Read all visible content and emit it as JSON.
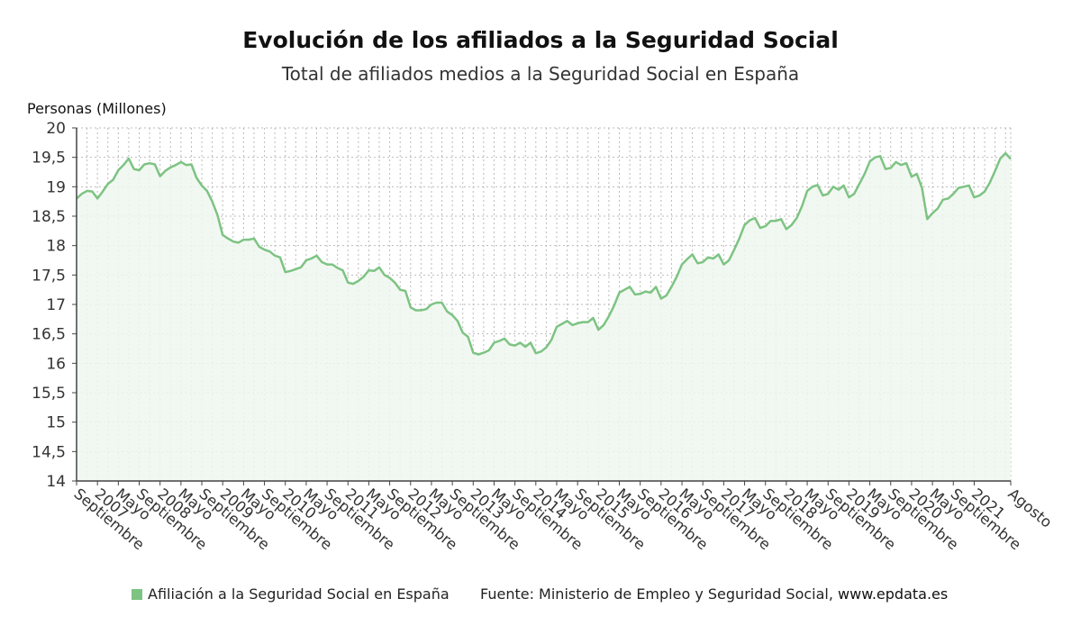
{
  "title": "Evolución de los afiliados a la Seguridad Social",
  "subtitle": "Total de afiliados medios a la Seguridad Social en España",
  "ylabel": "Personas (Millones)",
  "legend": {
    "label": "Afiliación a la Seguridad Social en España"
  },
  "source": {
    "prefix": "Fuente: Ministerio de Empleo y Seguridad Social, ",
    "site": "www.epdata.es"
  },
  "colors": {
    "line": "#7dc383",
    "area": "#eef7ee",
    "grid": "#bbbbbb",
    "axis": "#444444"
  },
  "chart_data": {
    "type": "area",
    "ylim": [
      14,
      20
    ],
    "yticks": [
      "14",
      "14,5",
      "15",
      "15,5",
      "16",
      "16,5",
      "17",
      "17,5",
      "18",
      "18,5",
      "19",
      "19,5",
      "20"
    ],
    "grid": true,
    "legend_position": "bottom-left",
    "xticks": [
      {
        "label": "Septiembre",
        "i": 0
      },
      {
        "label": "2007",
        "i": 4
      },
      {
        "label": "Mayo",
        "i": 8
      },
      {
        "label": "Septiembre",
        "i": 12
      },
      {
        "label": "2008",
        "i": 16
      },
      {
        "label": "Mayo",
        "i": 20
      },
      {
        "label": "Septiembre",
        "i": 24
      },
      {
        "label": "2009",
        "i": 28
      },
      {
        "label": "Mayo",
        "i": 32
      },
      {
        "label": "Septiembre",
        "i": 36
      },
      {
        "label": "2010",
        "i": 40
      },
      {
        "label": "Mayo",
        "i": 44
      },
      {
        "label": "Septiembre",
        "i": 48
      },
      {
        "label": "2011",
        "i": 52
      },
      {
        "label": "Mayo",
        "i": 56
      },
      {
        "label": "Septiembre",
        "i": 60
      },
      {
        "label": "2012",
        "i": 64
      },
      {
        "label": "Mayo",
        "i": 68
      },
      {
        "label": "Septiembre",
        "i": 72
      },
      {
        "label": "2013",
        "i": 76
      },
      {
        "label": "Mayo",
        "i": 80
      },
      {
        "label": "Septiembre",
        "i": 84
      },
      {
        "label": "2014",
        "i": 88
      },
      {
        "label": "Mayo",
        "i": 92
      },
      {
        "label": "Septiembre",
        "i": 96
      },
      {
        "label": "2015",
        "i": 100
      },
      {
        "label": "Mayo",
        "i": 104
      },
      {
        "label": "Septiembre",
        "i": 108
      },
      {
        "label": "2016",
        "i": 112
      },
      {
        "label": "Mayo",
        "i": 116
      },
      {
        "label": "Septiembre",
        "i": 120
      },
      {
        "label": "2017",
        "i": 124
      },
      {
        "label": "Mayo",
        "i": 128
      },
      {
        "label": "Septiembre",
        "i": 132
      },
      {
        "label": "2018",
        "i": 136
      },
      {
        "label": "Mayo",
        "i": 140
      },
      {
        "label": "Septiembre",
        "i": 144
      },
      {
        "label": "2019",
        "i": 148
      },
      {
        "label": "Mayo",
        "i": 152
      },
      {
        "label": "Septiembre",
        "i": 156
      },
      {
        "label": "2020",
        "i": 160
      },
      {
        "label": "Mayo",
        "i": 164
      },
      {
        "label": "Septiembre",
        "i": 168
      },
      {
        "label": "2021",
        "i": 172
      },
      {
        "label": "Agosto",
        "i": 179
      }
    ],
    "series": [
      {
        "values": [
          18.8,
          18.88,
          18.93,
          18.92,
          18.8,
          18.92,
          19.05,
          19.12,
          19.28,
          19.37,
          19.48,
          19.3,
          19.28,
          19.38,
          19.4,
          19.38,
          19.18,
          19.27,
          19.33,
          19.37,
          19.42,
          19.37,
          19.38,
          19.15,
          19.02,
          18.93,
          18.75,
          18.52,
          18.18,
          18.12,
          18.07,
          18.05,
          18.1,
          18.1,
          18.12,
          17.98,
          17.93,
          17.9,
          17.83,
          17.8,
          17.55,
          17.57,
          17.6,
          17.63,
          17.75,
          17.78,
          17.83,
          17.72,
          17.68,
          17.68,
          17.62,
          17.58,
          17.37,
          17.35,
          17.4,
          17.47,
          17.58,
          17.57,
          17.63,
          17.5,
          17.45,
          17.37,
          17.25,
          17.23,
          16.95,
          16.9,
          16.9,
          16.92,
          17.0,
          17.03,
          17.03,
          16.88,
          16.82,
          16.72,
          16.52,
          16.45,
          16.18,
          16.15,
          16.18,
          16.22,
          16.35,
          16.38,
          16.42,
          16.32,
          16.3,
          16.35,
          16.28,
          16.35,
          16.17,
          16.2,
          16.27,
          16.4,
          16.62,
          16.67,
          16.72,
          16.65,
          16.68,
          16.7,
          16.7,
          16.77,
          16.57,
          16.65,
          16.8,
          16.98,
          17.2,
          17.25,
          17.3,
          17.17,
          17.18,
          17.22,
          17.2,
          17.3,
          17.1,
          17.15,
          17.3,
          17.47,
          17.68,
          17.77,
          17.85,
          17.7,
          17.72,
          17.8,
          17.78,
          17.85,
          17.68,
          17.75,
          17.93,
          18.12,
          18.35,
          18.43,
          18.47,
          18.3,
          18.33,
          18.42,
          18.42,
          18.45,
          18.28,
          18.35,
          18.47,
          18.67,
          18.93,
          19.0,
          19.03,
          18.85,
          18.88,
          19.0,
          18.95,
          19.02,
          18.82,
          18.88,
          19.05,
          19.22,
          19.43,
          19.5,
          19.52,
          19.3,
          19.32,
          19.42,
          19.37,
          19.4,
          19.17,
          19.22,
          18.98,
          18.45,
          18.55,
          18.63,
          18.78,
          18.8,
          18.88,
          18.98,
          19.0,
          19.02,
          18.82,
          18.85,
          18.92,
          19.07,
          19.27,
          19.48,
          19.57,
          19.47
        ]
      }
    ]
  }
}
